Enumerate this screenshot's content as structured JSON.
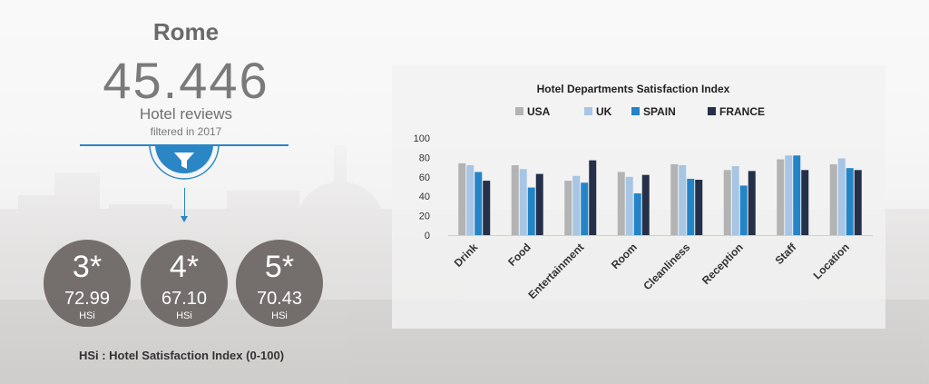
{
  "header": {
    "city": "Rome",
    "review_count": "45.446",
    "review_label": "Hotel reviews",
    "filter_label": "filtered in 2017"
  },
  "icons": {
    "filter": "filter-funnel-icon"
  },
  "colors": {
    "accent": "#2b86c5",
    "circle": "#6a6462"
  },
  "ratings": [
    {
      "label": "3*",
      "value": "72.99",
      "unit": "HSi"
    },
    {
      "label": "4*",
      "value": "67.10",
      "unit": "HSi"
    },
    {
      "label": "5*",
      "value": "70.43",
      "unit": "HSi"
    }
  ],
  "footnote": "HSi : Hotel Satisfaction Index (0-100)",
  "chart_data": {
    "type": "bar",
    "title": "Hotel Departments Satisfaction Index",
    "categories": [
      "Drink",
      "Food",
      "Entertainment",
      "Room",
      "Cleanliness",
      "Reception",
      "Staff",
      "Location"
    ],
    "series": [
      {
        "name": "USA",
        "color": "#b3b3b3",
        "values": [
          74,
          72,
          56,
          65,
          73,
          67,
          78,
          73
        ]
      },
      {
        "name": "UK",
        "color": "#a7c5e4",
        "values": [
          72,
          68,
          61,
          60,
          72,
          71,
          82,
          79
        ]
      },
      {
        "name": "SPAIN",
        "color": "#2385c7",
        "values": [
          65,
          49,
          54,
          43,
          58,
          51,
          82,
          69
        ]
      },
      {
        "name": "FRANCE",
        "color": "#25304a",
        "values": [
          56,
          63,
          77,
          62,
          57,
          66,
          67,
          67
        ]
      }
    ],
    "yticks": [
      0,
      20,
      40,
      60,
      80,
      100
    ],
    "ylim": [
      0,
      100
    ],
    "xlabel": "",
    "ylabel": "",
    "legend": "top",
    "grid": false
  }
}
